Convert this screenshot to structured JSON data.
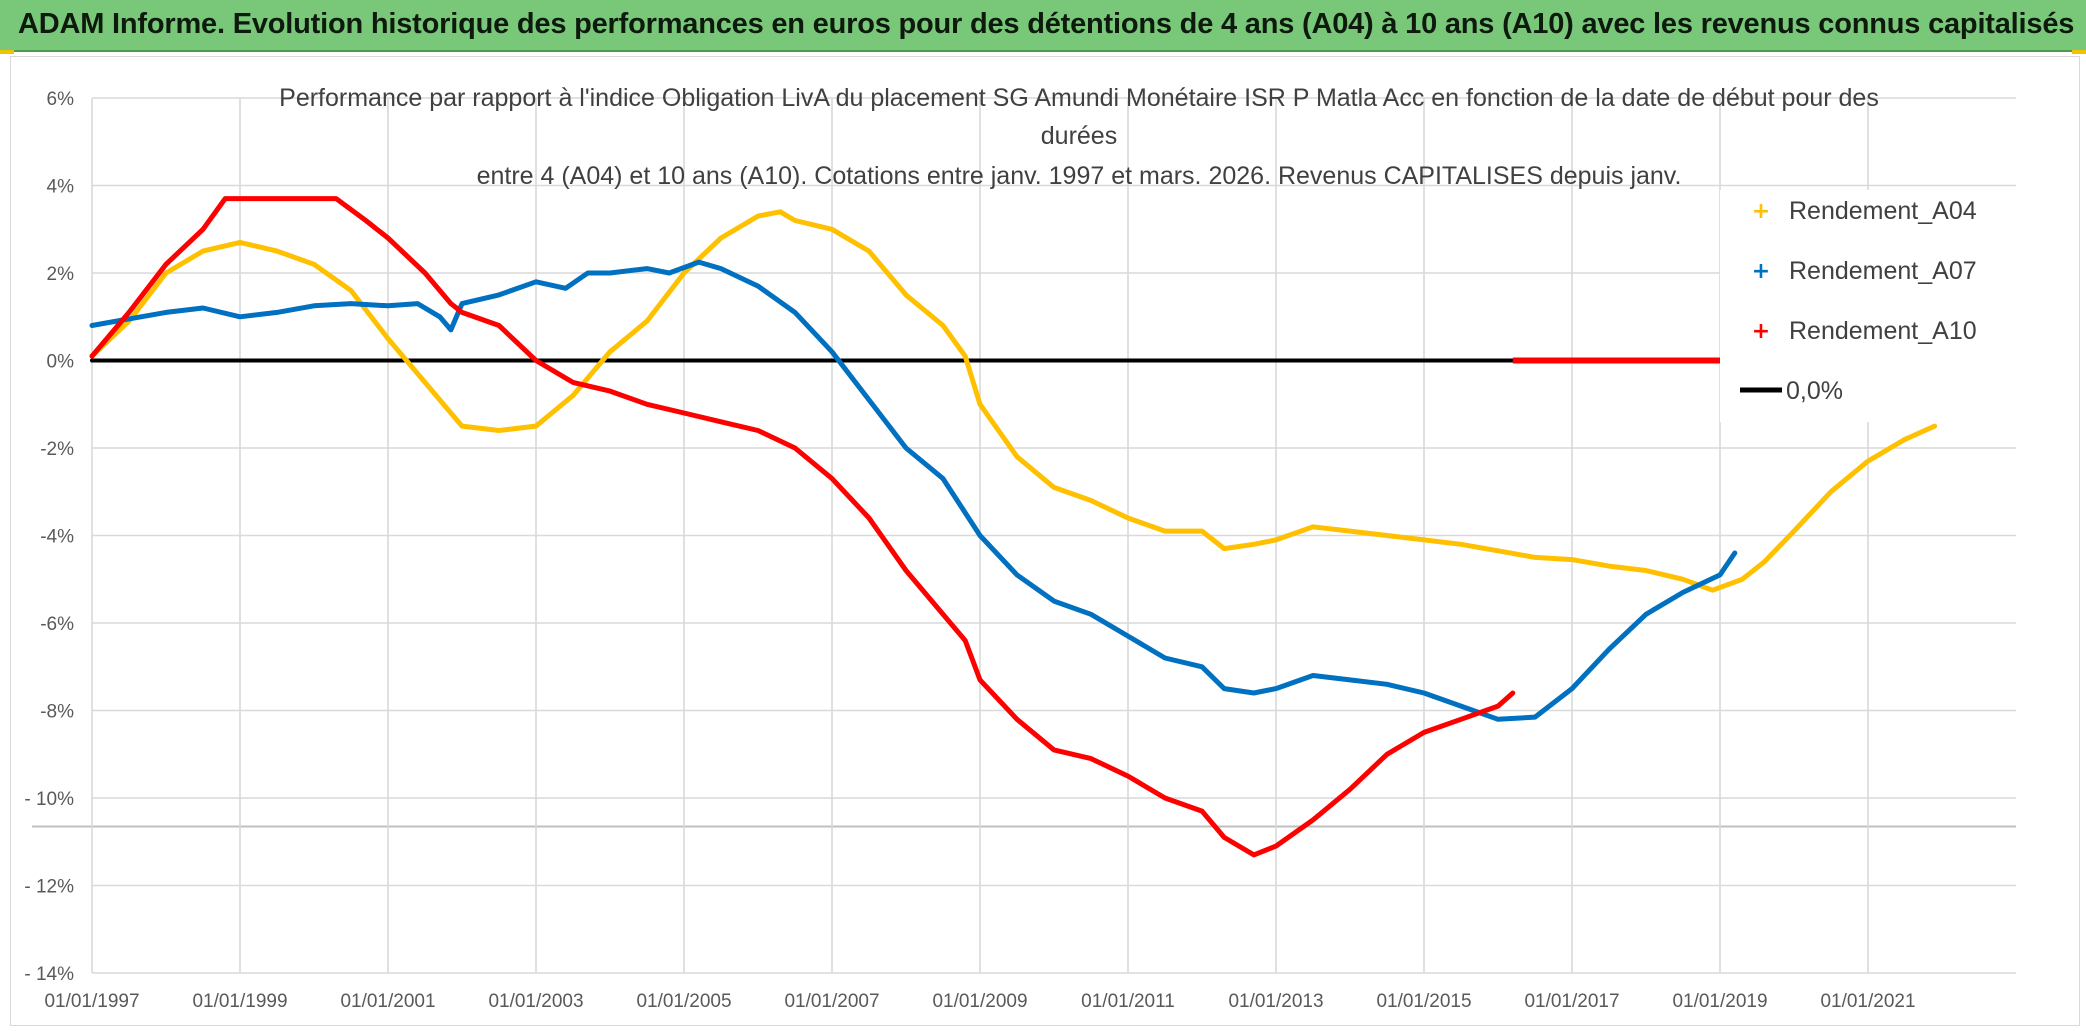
{
  "banner": {
    "title": "ADAM Informe. Evolution historique des performances en euros pour des détentions de 4 ans (A04) à 10 ans (A10) avec les revenus connus capitalisés"
  },
  "colors": {
    "banner": "#79c879",
    "a04": "#ffc000",
    "a07": "#0070c0",
    "a10": "#ff0000",
    "zero": "#000000"
  },
  "chart_data": {
    "type": "line",
    "title_lines": [
      "Performance par rapport à l'indice Obligation LivA  du placement SG Amundi Monétaire ISR P Matla Acc en fonction de la date de début pour des",
      "durées",
      "entre 4 (A04) et 10 ans (A10). Cotations entre janv. 1997 et mars. 2026. Revenus CAPITALISES depuis janv."
    ],
    "x_unit": "year",
    "xlim": [
      1997,
      2023
    ],
    "ylim": [
      -14,
      6
    ],
    "y_ticks": [
      6,
      4,
      2,
      0,
      -2,
      -4,
      -6,
      -8,
      -10,
      -12,
      -14
    ],
    "y_tick_labels": [
      "6%",
      "4%",
      "2%",
      "0%",
      "-2%",
      "-4%",
      "-6%",
      "-8%",
      "- 10%",
      "- 12%",
      "- 14%"
    ],
    "x_ticks": [
      1997,
      1999,
      2001,
      2003,
      2005,
      2007,
      2009,
      2011,
      2013,
      2015,
      2017,
      2019,
      2021
    ],
    "x_tick_labels": [
      "01/01/1997",
      "01/01/1999",
      "01/01/2001",
      "01/01/2003",
      "01/01/2005",
      "01/01/2007",
      "01/01/2009",
      "01/01/2011",
      "01/01/2013",
      "01/01/2015",
      "01/01/2017",
      "01/01/2019",
      "01/01/2021"
    ],
    "grid": true,
    "legend_position": "top-right",
    "series": [
      {
        "name": "Rendement_A04",
        "color": "#ffc000",
        "points": [
          [
            1997.0,
            0.1
          ],
          [
            1997.5,
            0.9
          ],
          [
            1998.0,
            2.0
          ],
          [
            1998.5,
            2.5
          ],
          [
            1999.0,
            2.7
          ],
          [
            1999.5,
            2.5
          ],
          [
            2000.0,
            2.2
          ],
          [
            2000.5,
            1.6
          ],
          [
            2001.0,
            0.5
          ],
          [
            2001.5,
            -0.5
          ],
          [
            2002.0,
            -1.5
          ],
          [
            2002.5,
            -1.6
          ],
          [
            2003.0,
            -1.5
          ],
          [
            2003.5,
            -0.8
          ],
          [
            2004.0,
            0.2
          ],
          [
            2004.5,
            0.9
          ],
          [
            2005.0,
            2.0
          ],
          [
            2005.5,
            2.8
          ],
          [
            2006.0,
            3.3
          ],
          [
            2006.3,
            3.4
          ],
          [
            2006.5,
            3.2
          ],
          [
            2007.0,
            3.0
          ],
          [
            2007.5,
            2.5
          ],
          [
            2008.0,
            1.5
          ],
          [
            2008.5,
            0.8
          ],
          [
            2008.8,
            0.1
          ],
          [
            2009.0,
            -1.0
          ],
          [
            2009.5,
            -2.2
          ],
          [
            2010.0,
            -2.9
          ],
          [
            2010.5,
            -3.2
          ],
          [
            2011.0,
            -3.6
          ],
          [
            2011.5,
            -3.9
          ],
          [
            2012.0,
            -3.9
          ],
          [
            2012.3,
            -4.3
          ],
          [
            2012.7,
            -4.2
          ],
          [
            2013.0,
            -4.1
          ],
          [
            2013.5,
            -3.8
          ],
          [
            2014.0,
            -3.9
          ],
          [
            2014.5,
            -4.0
          ],
          [
            2015.0,
            -4.1
          ],
          [
            2015.5,
            -4.2
          ],
          [
            2016.0,
            -4.35
          ],
          [
            2016.5,
            -4.5
          ],
          [
            2017.0,
            -4.55
          ],
          [
            2017.5,
            -4.7
          ],
          [
            2018.0,
            -4.8
          ],
          [
            2018.5,
            -5.0
          ],
          [
            2018.9,
            -5.25
          ],
          [
            2019.3,
            -5.0
          ],
          [
            2019.6,
            -4.6
          ],
          [
            2020.0,
            -3.9
          ],
          [
            2020.5,
            -3.0
          ],
          [
            2021.0,
            -2.3
          ],
          [
            2021.5,
            -1.8
          ],
          [
            2021.9,
            -1.5
          ]
        ]
      },
      {
        "name": "Rendement_A07",
        "color": "#0070c0",
        "points": [
          [
            1997.0,
            0.8
          ],
          [
            1997.5,
            0.95
          ],
          [
            1998.0,
            1.1
          ],
          [
            1998.5,
            1.2
          ],
          [
            1999.0,
            1.0
          ],
          [
            1999.5,
            1.1
          ],
          [
            2000.0,
            1.25
          ],
          [
            2000.5,
            1.3
          ],
          [
            2001.0,
            1.25
          ],
          [
            2001.4,
            1.3
          ],
          [
            2001.7,
            1.0
          ],
          [
            2001.85,
            0.7
          ],
          [
            2002.0,
            1.3
          ],
          [
            2002.5,
            1.5
          ],
          [
            2003.0,
            1.8
          ],
          [
            2003.4,
            1.65
          ],
          [
            2003.7,
            2.0
          ],
          [
            2004.0,
            2.0
          ],
          [
            2004.5,
            2.1
          ],
          [
            2004.8,
            2.0
          ],
          [
            2005.2,
            2.25
          ],
          [
            2005.5,
            2.1
          ],
          [
            2006.0,
            1.7
          ],
          [
            2006.5,
            1.1
          ],
          [
            2007.0,
            0.2
          ],
          [
            2007.5,
            -0.9
          ],
          [
            2008.0,
            -2.0
          ],
          [
            2008.5,
            -2.7
          ],
          [
            2009.0,
            -4.0
          ],
          [
            2009.5,
            -4.9
          ],
          [
            2010.0,
            -5.5
          ],
          [
            2010.5,
            -5.8
          ],
          [
            2011.0,
            -6.3
          ],
          [
            2011.5,
            -6.8
          ],
          [
            2012.0,
            -7.0
          ],
          [
            2012.3,
            -7.5
          ],
          [
            2012.7,
            -7.6
          ],
          [
            2013.0,
            -7.5
          ],
          [
            2013.5,
            -7.2
          ],
          [
            2014.0,
            -7.3
          ],
          [
            2014.5,
            -7.4
          ],
          [
            2015.0,
            -7.6
          ],
          [
            2015.5,
            -7.9
          ],
          [
            2016.0,
            -8.2
          ],
          [
            2016.5,
            -8.15
          ],
          [
            2017.0,
            -7.5
          ],
          [
            2017.5,
            -6.6
          ],
          [
            2018.0,
            -5.8
          ],
          [
            2018.5,
            -5.3
          ],
          [
            2019.0,
            -4.9
          ],
          [
            2019.2,
            -4.4
          ]
        ]
      },
      {
        "name": "Rendement_A10",
        "color": "#ff0000",
        "points": [
          [
            1997.0,
            0.1
          ],
          [
            1997.5,
            1.1
          ],
          [
            1998.0,
            2.2
          ],
          [
            1998.5,
            3.0
          ],
          [
            1998.8,
            3.7
          ],
          [
            2000.3,
            3.7
          ],
          [
            2000.7,
            3.2
          ],
          [
            2001.0,
            2.8
          ],
          [
            2001.5,
            2.0
          ],
          [
            2001.85,
            1.3
          ],
          [
            2002.0,
            1.1
          ],
          [
            2002.5,
            0.8
          ],
          [
            2003.0,
            0.0
          ],
          [
            2003.5,
            -0.5
          ],
          [
            2004.0,
            -0.7
          ],
          [
            2004.5,
            -1.0
          ],
          [
            2005.0,
            -1.2
          ],
          [
            2005.5,
            -1.4
          ],
          [
            2006.0,
            -1.6
          ],
          [
            2006.5,
            -2.0
          ],
          [
            2007.0,
            -2.7
          ],
          [
            2007.5,
            -3.6
          ],
          [
            2008.0,
            -4.8
          ],
          [
            2008.5,
            -5.8
          ],
          [
            2008.8,
            -6.4
          ],
          [
            2009.0,
            -7.3
          ],
          [
            2009.5,
            -8.2
          ],
          [
            2010.0,
            -8.9
          ],
          [
            2010.5,
            -9.1
          ],
          [
            2011.0,
            -9.5
          ],
          [
            2011.5,
            -10.0
          ],
          [
            2012.0,
            -10.3
          ],
          [
            2012.3,
            -10.9
          ],
          [
            2012.7,
            -11.3
          ],
          [
            2013.0,
            -11.1
          ],
          [
            2013.5,
            -10.5
          ],
          [
            2014.0,
            -9.8
          ],
          [
            2014.5,
            -9.0
          ],
          [
            2015.0,
            -8.5
          ],
          [
            2015.5,
            -8.2
          ],
          [
            2016.0,
            -7.9
          ],
          [
            2016.2,
            -7.6
          ]
        ]
      },
      {
        "name": "0,0%",
        "color": "#000000",
        "points": [
          [
            1997.0,
            0.0
          ],
          [
            2023.0,
            0.0
          ]
        ]
      }
    ],
    "red_flat_segment": [
      [
        2016.2,
        0.0
      ],
      [
        2023.0,
        0.0
      ]
    ]
  }
}
